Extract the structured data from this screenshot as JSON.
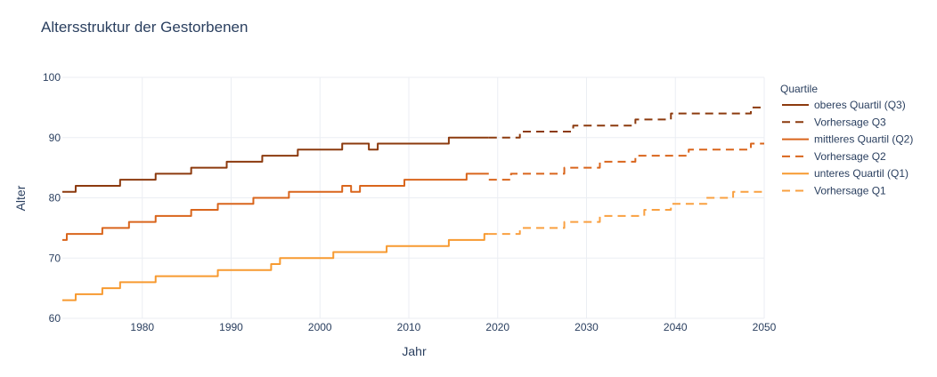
{
  "chart_data": {
    "type": "line",
    "title": "Altersstruktur der Gestorbenen",
    "xlabel": "Jahr",
    "ylabel": "Alter",
    "xlim": [
      1971,
      2050
    ],
    "ylim": [
      60,
      100
    ],
    "xticks": [
      1980,
      1990,
      2000,
      2010,
      2020,
      2030,
      2040,
      2050
    ],
    "yticks": [
      60,
      70,
      80,
      90,
      100
    ],
    "grid": true,
    "legend_title": "Quartile",
    "legend_position": "right",
    "series": [
      {
        "name": "oberes Quartil (Q3)",
        "color": "#8c3a0e",
        "dash": "solid",
        "x": [
          1971,
          1972,
          1973,
          1974,
          1975,
          1976,
          1977,
          1978,
          1979,
          1980,
          1981,
          1982,
          1983,
          1984,
          1985,
          1986,
          1987,
          1988,
          1989,
          1990,
          1991,
          1992,
          1993,
          1994,
          1995,
          1996,
          1997,
          1998,
          1999,
          2000,
          2001,
          2002,
          2003,
          2004,
          2005,
          2006,
          2007,
          2008,
          2009,
          2010,
          2011,
          2012,
          2013,
          2014,
          2015,
          2016,
          2017,
          2018,
          2019
        ],
        "y": [
          81,
          81,
          82,
          82,
          82,
          82,
          82,
          83,
          83,
          83,
          83,
          84,
          84,
          84,
          84,
          85,
          85,
          85,
          85,
          86,
          86,
          86,
          86,
          87,
          87,
          87,
          87,
          88,
          88,
          88,
          88,
          88,
          89,
          89,
          89,
          88,
          89,
          89,
          89,
          89,
          89,
          89,
          89,
          89,
          90,
          90,
          90,
          90,
          90
        ]
      },
      {
        "name": "Vorhersage Q3",
        "color": "#8c3a0e",
        "dash": "dash",
        "x": [
          2019,
          2020,
          2021,
          2022,
          2023,
          2024,
          2025,
          2026,
          2027,
          2028,
          2029,
          2030,
          2031,
          2032,
          2033,
          2034,
          2035,
          2036,
          2037,
          2038,
          2039,
          2040,
          2041,
          2042,
          2043,
          2044,
          2045,
          2046,
          2047,
          2048,
          2049,
          2050
        ],
        "y": [
          90,
          90,
          90,
          90,
          91,
          91,
          91,
          91,
          91,
          91,
          92,
          92,
          92,
          92,
          92,
          92,
          92,
          93,
          93,
          93,
          93,
          94,
          94,
          94,
          94,
          94,
          94,
          94,
          94,
          94,
          95,
          95
        ]
      },
      {
        "name": "mittleres Quartil (Q2)",
        "color": "#d9651c",
        "dash": "solid",
        "x": [
          1971,
          1972,
          1973,
          1974,
          1975,
          1976,
          1977,
          1978,
          1979,
          1980,
          1981,
          1982,
          1983,
          1984,
          1985,
          1986,
          1987,
          1988,
          1989,
          1990,
          1991,
          1992,
          1993,
          1994,
          1995,
          1996,
          1997,
          1998,
          1999,
          2000,
          2001,
          2002,
          2003,
          2004,
          2005,
          2006,
          2007,
          2008,
          2009,
          2010,
          2011,
          2012,
          2013,
          2014,
          2015,
          2016,
          2017,
          2018,
          2019
        ],
        "y": [
          73,
          74,
          74,
          74,
          74,
          75,
          75,
          75,
          76,
          76,
          76,
          77,
          77,
          77,
          77,
          78,
          78,
          78,
          79,
          79,
          79,
          79,
          80,
          80,
          80,
          80,
          81,
          81,
          81,
          81,
          81,
          81,
          82,
          81,
          82,
          82,
          82,
          82,
          82,
          83,
          83,
          83,
          83,
          83,
          83,
          83,
          84,
          84,
          84
        ]
      },
      {
        "name": "Vorhersage Q2",
        "color": "#d9651c",
        "dash": "dash",
        "x": [
          2019,
          2020,
          2021,
          2022,
          2023,
          2024,
          2025,
          2026,
          2027,
          2028,
          2029,
          2030,
          2031,
          2032,
          2033,
          2034,
          2035,
          2036,
          2037,
          2038,
          2039,
          2040,
          2041,
          2042,
          2043,
          2044,
          2045,
          2046,
          2047,
          2048,
          2049,
          2050
        ],
        "y": [
          83,
          83,
          83,
          84,
          84,
          84,
          84,
          84,
          84,
          85,
          85,
          85,
          85,
          86,
          86,
          86,
          86,
          87,
          87,
          87,
          87,
          87,
          87,
          88,
          88,
          88,
          88,
          88,
          88,
          88,
          89,
          89
        ]
      },
      {
        "name": "unteres Quartil (Q1)",
        "color": "#f79a30",
        "dash": "solid",
        "x": [
          1971,
          1972,
          1973,
          1974,
          1975,
          1976,
          1977,
          1978,
          1979,
          1980,
          1981,
          1982,
          1983,
          1984,
          1985,
          1986,
          1987,
          1988,
          1989,
          1990,
          1991,
          1992,
          1993,
          1994,
          1995,
          1996,
          1997,
          1998,
          1999,
          2000,
          2001,
          2002,
          2003,
          2004,
          2005,
          2006,
          2007,
          2008,
          2009,
          2010,
          2011,
          2012,
          2013,
          2014,
          2015,
          2016,
          2017,
          2018,
          2019
        ],
        "y": [
          63,
          63,
          64,
          64,
          64,
          65,
          65,
          66,
          66,
          66,
          66,
          67,
          67,
          67,
          67,
          67,
          67,
          67,
          68,
          68,
          68,
          68,
          68,
          68,
          69,
          70,
          70,
          70,
          70,
          70,
          70,
          71,
          71,
          71,
          71,
          71,
          71,
          72,
          72,
          72,
          72,
          72,
          72,
          72,
          73,
          73,
          73,
          73,
          74
        ]
      },
      {
        "name": "Vorhersage Q1",
        "color": "#f9a040",
        "dash": "dash",
        "x": [
          2019,
          2020,
          2021,
          2022,
          2023,
          2024,
          2025,
          2026,
          2027,
          2028,
          2029,
          2030,
          2031,
          2032,
          2033,
          2034,
          2035,
          2036,
          2037,
          2038,
          2039,
          2040,
          2041,
          2042,
          2043,
          2044,
          2045,
          2046,
          2047,
          2048,
          2049,
          2050
        ],
        "y": [
          74,
          74,
          74,
          74,
          75,
          75,
          75,
          75,
          75,
          76,
          76,
          76,
          76,
          77,
          77,
          77,
          77,
          77,
          78,
          78,
          78,
          79,
          79,
          79,
          79,
          80,
          80,
          80,
          81,
          81,
          81,
          81
        ]
      }
    ]
  }
}
